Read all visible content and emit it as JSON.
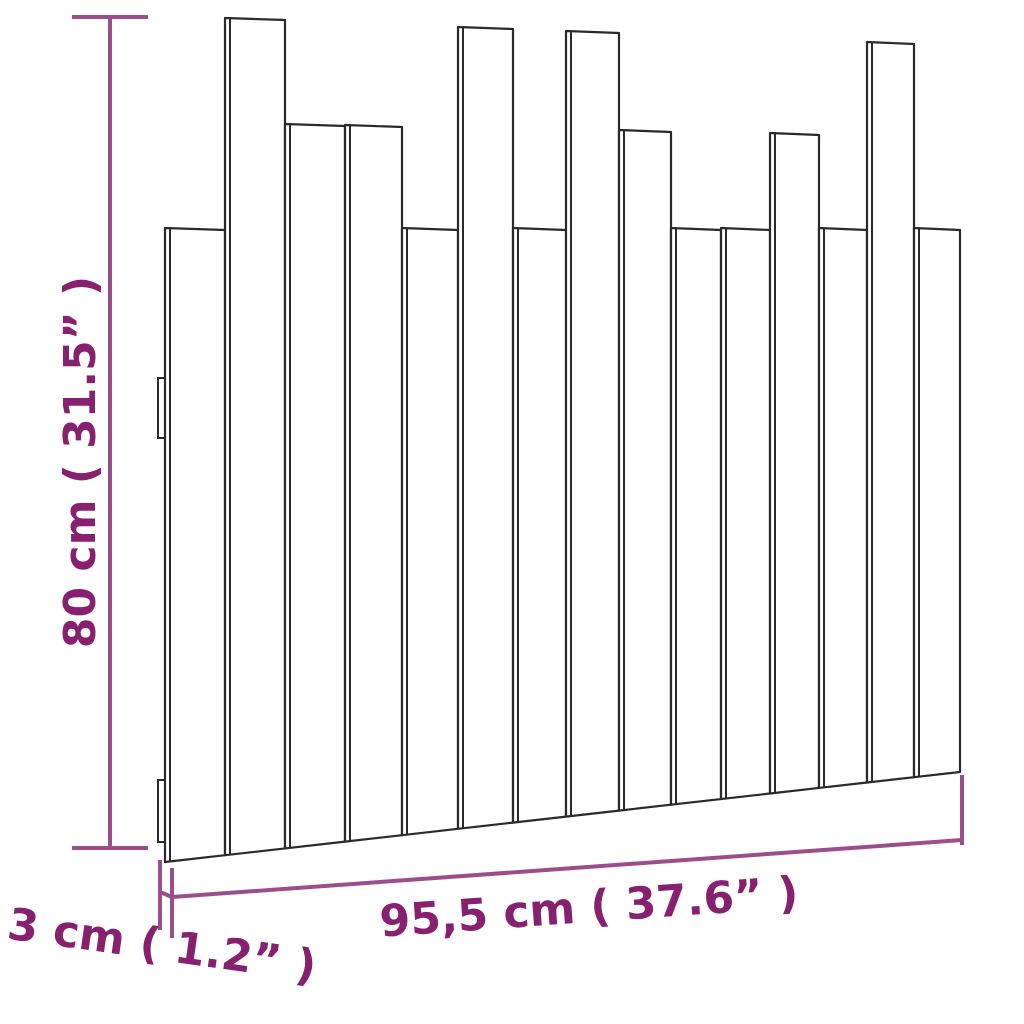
{
  "colors": {
    "dimension_text": "#86206f",
    "dimension_line": "#9b4d8c",
    "outline": "#2a2a2a"
  },
  "dimensions": {
    "height": "80 cm ( 31.5” )",
    "width": "95,5 cm ( 37.6” )",
    "depth": "3 cm ( 1.2” )"
  }
}
